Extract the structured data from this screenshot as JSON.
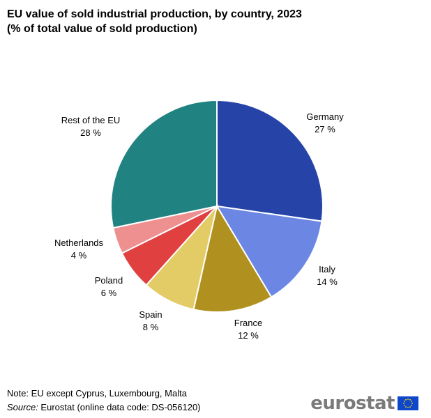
{
  "header": {
    "title_line1": "EU value of sold industrial production, by country, 2023",
    "title_line2": "(% of total value of sold production)"
  },
  "footer": {
    "note": "Note: EU except Cyprus, Luxembourg, Malta",
    "source_label": "Source:",
    "source_text": " Eurostat (online data code: DS-056120)",
    "logo_text": "eurostat"
  },
  "chart_data": {
    "type": "pie",
    "title": "EU value of sold industrial production, by country, 2023",
    "subtitle": "(% of total value of sold production)",
    "unit": "%",
    "slices": [
      {
        "label": "Germany",
        "value": 27,
        "value_label": "27 %",
        "color": "#2644a8"
      },
      {
        "label": "Italy",
        "value": 14,
        "value_label": "14 %",
        "color": "#6b87e3"
      },
      {
        "label": "France",
        "value": 12,
        "value_label": "12 %",
        "color": "#b09120"
      },
      {
        "label": "Spain",
        "value": 8,
        "value_label": "8 %",
        "color": "#e3cc66"
      },
      {
        "label": "Poland",
        "value": 6,
        "value_label": "6 %",
        "color": "#e04040"
      },
      {
        "label": "Netherlands",
        "value": 4,
        "value_label": "4 %",
        "color": "#ee9090"
      },
      {
        "label": "Rest of the EU",
        "value": 28,
        "value_label": "28 %",
        "color": "#218282"
      }
    ]
  },
  "colors": {
    "logo_gray": "#7a7a7a",
    "eu_flag_blue": "#0e47cb",
    "eu_flag_stars": "#ffdd00"
  }
}
